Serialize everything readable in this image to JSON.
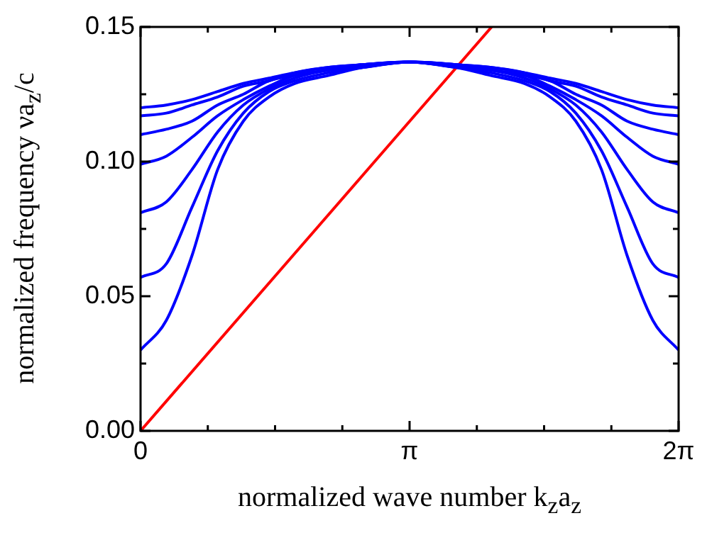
{
  "chart_data": {
    "type": "line",
    "xlabel": "normalized wave number k$_{z}$a$_{z}$",
    "ylabel": "normalized frequency νa$_{z}$/c",
    "x": [
      0,
      0.3,
      0.6,
      0.9,
      1.2,
      1.5,
      1.8,
      2.2,
      2.6,
      3.1416,
      3.683,
      4.083,
      4.483,
      4.783,
      5.083,
      5.383,
      5.683,
      5.983,
      6.2832
    ],
    "series": [
      {
        "color": "#0000ff",
        "values": [
          0.12,
          0.121,
          0.123,
          0.126,
          0.129,
          0.131,
          0.133,
          0.135,
          0.136,
          0.137,
          0.136,
          0.135,
          0.133,
          0.131,
          0.129,
          0.126,
          0.123,
          0.121,
          0.12
        ]
      },
      {
        "color": "#0000ff",
        "values": [
          0.117,
          0.118,
          0.121,
          0.124,
          0.128,
          0.13,
          0.133,
          0.135,
          0.136,
          0.137,
          0.136,
          0.135,
          0.133,
          0.13,
          0.128,
          0.124,
          0.121,
          0.118,
          0.117
        ]
      },
      {
        "color": "#0000ff",
        "values": [
          0.11,
          0.112,
          0.115,
          0.121,
          0.125,
          0.13,
          0.132,
          0.134,
          0.136,
          0.137,
          0.136,
          0.134,
          0.132,
          0.13,
          0.125,
          0.121,
          0.115,
          0.112,
          0.11
        ]
      },
      {
        "color": "#0000ff",
        "values": [
          0.099,
          0.102,
          0.109,
          0.117,
          0.123,
          0.128,
          0.132,
          0.134,
          0.136,
          0.137,
          0.136,
          0.134,
          0.132,
          0.128,
          0.123,
          0.117,
          0.109,
          0.102,
          0.099
        ]
      },
      {
        "color": "#0000ff",
        "values": [
          0.081,
          0.085,
          0.097,
          0.111,
          0.121,
          0.127,
          0.131,
          0.134,
          0.135,
          0.137,
          0.135,
          0.134,
          0.131,
          0.127,
          0.121,
          0.111,
          0.097,
          0.085,
          0.081
        ]
      },
      {
        "color": "#0000ff",
        "values": [
          0.057,
          0.062,
          0.083,
          0.104,
          0.118,
          0.126,
          0.13,
          0.133,
          0.135,
          0.137,
          0.135,
          0.133,
          0.13,
          0.126,
          0.118,
          0.104,
          0.083,
          0.062,
          0.057
        ]
      },
      {
        "color": "#0000ff",
        "values": [
          0.03,
          0.041,
          0.065,
          0.097,
          0.115,
          0.124,
          0.129,
          0.132,
          0.135,
          0.137,
          0.135,
          0.132,
          0.129,
          0.124,
          0.115,
          0.097,
          0.065,
          0.041,
          0.03
        ]
      },
      {
        "color": "#ff0000",
        "x": [
          0,
          4.1
        ],
        "values": [
          0,
          0.15
        ]
      }
    ],
    "xlim": [
      0,
      6.2832
    ],
    "xticks": [
      {
        "value": 0,
        "label": "0"
      },
      {
        "value": 0.7854,
        "label": null
      },
      {
        "value": 1.5708,
        "label": null
      },
      {
        "value": 2.3562,
        "label": null
      },
      {
        "value": 3.1416,
        "label": "π"
      },
      {
        "value": 3.927,
        "label": null
      },
      {
        "value": 4.7124,
        "label": null
      },
      {
        "value": 5.4978,
        "label": null
      },
      {
        "value": 6.2832,
        "label": "2π"
      }
    ],
    "ylim": [
      0,
      0.15
    ],
    "yticks": [
      {
        "value": 0,
        "label": "0.00"
      },
      {
        "value": 0.025,
        "label": null
      },
      {
        "value": 0.05,
        "label": "0.05"
      },
      {
        "value": 0.075,
        "label": null
      },
      {
        "value": 0.1,
        "label": "0.10"
      },
      {
        "value": 0.125,
        "label": null
      },
      {
        "value": 0.15,
        "label": "0.15"
      }
    ],
    "grid": false,
    "legend": false,
    "marker": "none",
    "line_style": "solid"
  }
}
